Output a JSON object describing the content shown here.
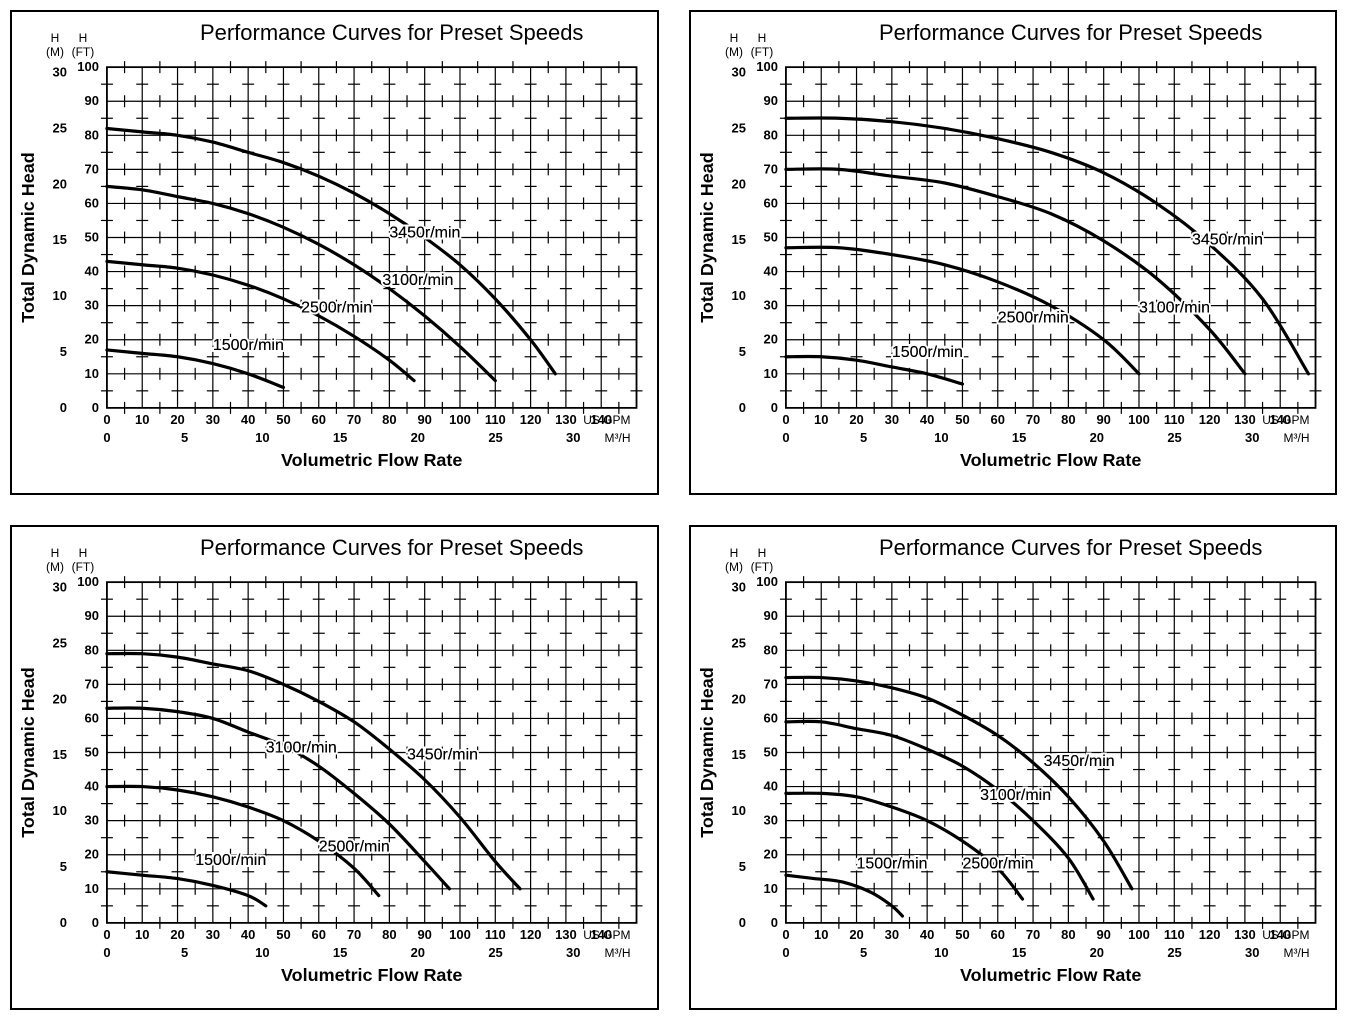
{
  "layout": {
    "rows": 2,
    "cols": 2,
    "panel_border_color": "#000000",
    "background_color": "#ffffff",
    "grid_color": "#000000",
    "major_grid_width": 1.2,
    "minor_tick_len": 6,
    "curve_color": "#000000",
    "curve_width": 3.2,
    "title_fontsize": 22,
    "axis_label_fontsize": 18,
    "tick_fontsize": 13,
    "series_label_fontsize": 16
  },
  "common": {
    "title": "Performance Curves for Preset Speeds",
    "y_label": "Total Dynamic Head",
    "x_label": "Volumetric Flow Rate",
    "y_left_header_1": "H",
    "y_left_header_2": "H",
    "y_left_sub_1": "(M)",
    "y_left_sub_2": "(FT)",
    "x_unit_top": "US GPM",
    "x_unit_bottom": "M³/H",
    "y_meters": {
      "min": 0,
      "max": 30,
      "step": 5,
      "ticks": [
        0,
        5,
        10,
        15,
        20,
        25,
        30
      ]
    },
    "y_feet": {
      "min": 0,
      "max": 100,
      "step": 10,
      "ticks": [
        0,
        10,
        20,
        30,
        40,
        50,
        60,
        70,
        80,
        90,
        100
      ]
    },
    "x_gpm": {
      "min": 0,
      "max": 150,
      "step": 10,
      "ticks": [
        0,
        10,
        20,
        30,
        40,
        50,
        60,
        70,
        80,
        90,
        100,
        110,
        120,
        130,
        140
      ]
    },
    "x_m3h": {
      "min": 0,
      "max": 34.07,
      "step_label": 5,
      "ticks": [
        0,
        5,
        10,
        15,
        20,
        25,
        30
      ]
    }
  },
  "charts": [
    {
      "id": "chart-a",
      "series": [
        {
          "name": "3450r/min",
          "label_xy_ft": [
            80,
            50
          ],
          "points_gpm_ft": [
            [
              0,
              82
            ],
            [
              10,
              81
            ],
            [
              20,
              80
            ],
            [
              30,
              78
            ],
            [
              40,
              75
            ],
            [
              50,
              72
            ],
            [
              60,
              68
            ],
            [
              70,
              63
            ],
            [
              80,
              57
            ],
            [
              90,
              50
            ],
            [
              100,
              42
            ],
            [
              110,
              32
            ],
            [
              120,
              20
            ],
            [
              127,
              10
            ]
          ]
        },
        {
          "name": "3100r/min",
          "label_xy_ft": [
            78,
            36
          ],
          "points_gpm_ft": [
            [
              0,
              65
            ],
            [
              10,
              64
            ],
            [
              20,
              62
            ],
            [
              30,
              60
            ],
            [
              40,
              57
            ],
            [
              50,
              53
            ],
            [
              60,
              48
            ],
            [
              70,
              42
            ],
            [
              80,
              35
            ],
            [
              90,
              27
            ],
            [
              100,
              18
            ],
            [
              110,
              8
            ]
          ]
        },
        {
          "name": "2500r/min",
          "label_xy_ft": [
            55,
            28
          ],
          "points_gpm_ft": [
            [
              0,
              43
            ],
            [
              10,
              42
            ],
            [
              20,
              41
            ],
            [
              30,
              39
            ],
            [
              40,
              36
            ],
            [
              50,
              32
            ],
            [
              60,
              27
            ],
            [
              70,
              21
            ],
            [
              80,
              14
            ],
            [
              87,
              8
            ]
          ]
        },
        {
          "name": "1500r/min",
          "label_xy_ft": [
            30,
            17
          ],
          "points_gpm_ft": [
            [
              0,
              17
            ],
            [
              10,
              16
            ],
            [
              20,
              15
            ],
            [
              30,
              13
            ],
            [
              40,
              10
            ],
            [
              50,
              6
            ]
          ]
        }
      ]
    },
    {
      "id": "chart-b",
      "series": [
        {
          "name": "3450r/min",
          "label_xy_ft": [
            115,
            48
          ],
          "points_gpm_ft": [
            [
              0,
              85
            ],
            [
              15,
              85
            ],
            [
              30,
              84
            ],
            [
              45,
              82
            ],
            [
              60,
              79
            ],
            [
              75,
              75
            ],
            [
              90,
              69
            ],
            [
              105,
              60
            ],
            [
              120,
              48
            ],
            [
              135,
              32
            ],
            [
              148,
              10
            ]
          ]
        },
        {
          "name": "3100r/min",
          "label_xy_ft": [
            100,
            28
          ],
          "points_gpm_ft": [
            [
              0,
              70
            ],
            [
              15,
              70
            ],
            [
              30,
              68
            ],
            [
              45,
              66
            ],
            [
              60,
              62
            ],
            [
              75,
              57
            ],
            [
              90,
              49
            ],
            [
              105,
              38
            ],
            [
              120,
              23
            ],
            [
              130,
              10
            ]
          ]
        },
        {
          "name": "2500r/min",
          "label_xy_ft": [
            60,
            25
          ],
          "points_gpm_ft": [
            [
              0,
              47
            ],
            [
              15,
              47
            ],
            [
              30,
              45
            ],
            [
              45,
              42
            ],
            [
              60,
              37
            ],
            [
              75,
              30
            ],
            [
              90,
              20
            ],
            [
              100,
              10
            ]
          ]
        },
        {
          "name": "1500r/min",
          "label_xy_ft": [
            30,
            15
          ],
          "points_gpm_ft": [
            [
              0,
              15
            ],
            [
              10,
              15
            ],
            [
              20,
              14
            ],
            [
              30,
              12
            ],
            [
              40,
              10
            ],
            [
              50,
              7
            ]
          ]
        }
      ]
    },
    {
      "id": "chart-c",
      "series": [
        {
          "name": "3450r/min",
          "label_xy_ft": [
            85,
            48
          ],
          "points_gpm_ft": [
            [
              0,
              79
            ],
            [
              10,
              79
            ],
            [
              20,
              78
            ],
            [
              30,
              76
            ],
            [
              40,
              74
            ],
            [
              50,
              70
            ],
            [
              60,
              65
            ],
            [
              70,
              59
            ],
            [
              80,
              51
            ],
            [
              90,
              42
            ],
            [
              100,
              31
            ],
            [
              110,
              18
            ],
            [
              117,
              10
            ]
          ]
        },
        {
          "name": "3100r/min",
          "label_xy_ft": [
            45,
            50
          ],
          "points_gpm_ft": [
            [
              0,
              63
            ],
            [
              10,
              63
            ],
            [
              20,
              62
            ],
            [
              30,
              60
            ],
            [
              40,
              56
            ],
            [
              50,
              52
            ],
            [
              60,
              46
            ],
            [
              70,
              38
            ],
            [
              80,
              29
            ],
            [
              90,
              18
            ],
            [
              97,
              10
            ]
          ]
        },
        {
          "name": "2500r/min",
          "label_xy_ft": [
            60,
            21
          ],
          "points_gpm_ft": [
            [
              0,
              40
            ],
            [
              10,
              40
            ],
            [
              20,
              39
            ],
            [
              30,
              37
            ],
            [
              40,
              34
            ],
            [
              50,
              30
            ],
            [
              60,
              24
            ],
            [
              70,
              16
            ],
            [
              77,
              8
            ]
          ]
        },
        {
          "name": "1500r/min",
          "label_xy_ft": [
            25,
            17
          ],
          "points_gpm_ft": [
            [
              0,
              15
            ],
            [
              10,
              14
            ],
            [
              20,
              13
            ],
            [
              30,
              11
            ],
            [
              40,
              8
            ],
            [
              45,
              5
            ]
          ]
        }
      ]
    },
    {
      "id": "chart-d",
      "series": [
        {
          "name": "3450r/min",
          "label_xy_ft": [
            73,
            46
          ],
          "points_gpm_ft": [
            [
              0,
              72
            ],
            [
              10,
              72
            ],
            [
              20,
              71
            ],
            [
              30,
              69
            ],
            [
              40,
              66
            ],
            [
              50,
              61
            ],
            [
              60,
              55
            ],
            [
              70,
              47
            ],
            [
              80,
              37
            ],
            [
              90,
              24
            ],
            [
              98,
              10
            ]
          ]
        },
        {
          "name": "3100r/min",
          "label_xy_ft": [
            55,
            36
          ],
          "points_gpm_ft": [
            [
              0,
              59
            ],
            [
              10,
              59
            ],
            [
              20,
              57
            ],
            [
              30,
              55
            ],
            [
              40,
              51
            ],
            [
              50,
              46
            ],
            [
              60,
              39
            ],
            [
              70,
              30
            ],
            [
              80,
              19
            ],
            [
              87,
              7
            ]
          ]
        },
        {
          "name": "2500r/min",
          "label_xy_ft": [
            50,
            16
          ],
          "points_gpm_ft": [
            [
              0,
              38
            ],
            [
              10,
              38
            ],
            [
              20,
              37
            ],
            [
              30,
              34
            ],
            [
              40,
              30
            ],
            [
              50,
              24
            ],
            [
              60,
              16
            ],
            [
              67,
              7
            ]
          ]
        },
        {
          "name": "1500r/min",
          "label_xy_ft": [
            20,
            16
          ],
          "points_gpm_ft": [
            [
              0,
              14
            ],
            [
              8,
              13
            ],
            [
              16,
              12
            ],
            [
              24,
              9
            ],
            [
              30,
              5
            ],
            [
              33,
              2
            ]
          ]
        }
      ]
    }
  ]
}
